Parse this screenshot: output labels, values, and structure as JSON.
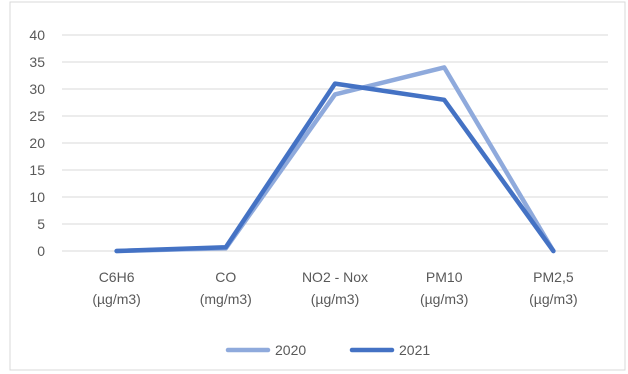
{
  "chart_data": {
    "type": "line",
    "title": "",
    "xlabel": "",
    "ylabel": "",
    "categories": [
      [
        "C6H6",
        "(µg/m3)"
      ],
      [
        "CO",
        "(mg/m3)"
      ],
      [
        "NO2 - Nox",
        "(µg/m3)"
      ],
      [
        "PM10",
        "(µg/m3)"
      ],
      [
        "PM2,5",
        "(µg/m3)"
      ]
    ],
    "series": [
      {
        "name": "2020",
        "values": [
          0,
          0.5,
          29,
          34,
          0
        ],
        "color": "#8faadc"
      },
      {
        "name": "2021",
        "values": [
          0,
          0.7,
          31,
          28,
          0
        ],
        "color": "#4472c4"
      }
    ],
    "ylim": [
      0,
      40
    ],
    "yticks": [
      0,
      5,
      10,
      15,
      20,
      25,
      30,
      35,
      40
    ],
    "grid": true,
    "legend_position": "bottom"
  }
}
